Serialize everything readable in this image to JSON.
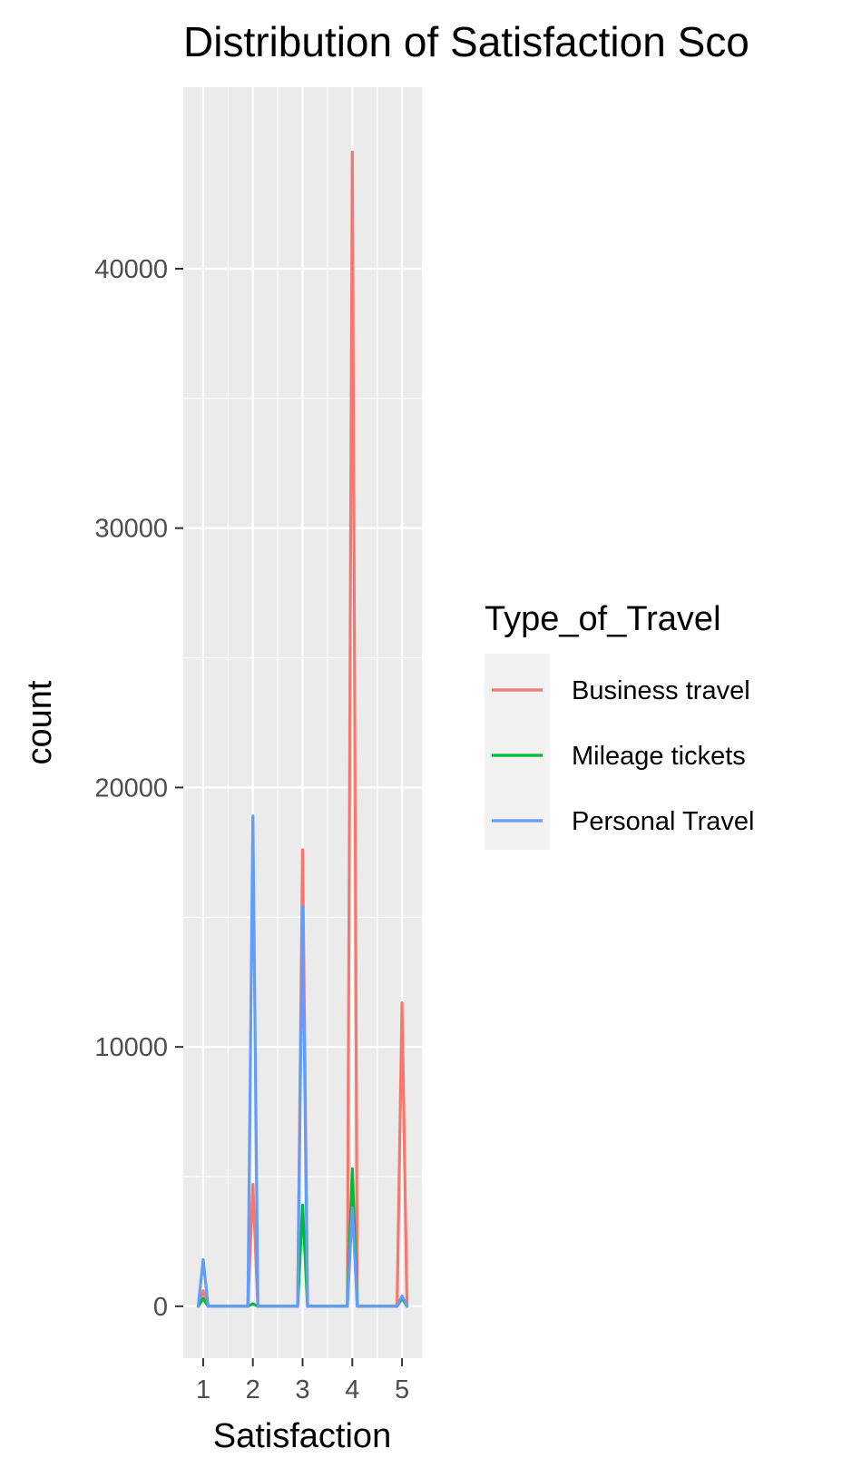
{
  "chart_data": {
    "type": "line",
    "title": "Distribution of Satisfaction Sco",
    "xlabel": "Satisfaction",
    "ylabel": "count",
    "x_ticks": [
      1,
      2,
      3,
      4,
      5
    ],
    "y_ticks": [
      0,
      10000,
      20000,
      30000,
      40000
    ],
    "y_tick_labels": [
      "0",
      "10000",
      "20000",
      "30000",
      "40000"
    ],
    "xlim": [
      0.6,
      5.4
    ],
    "ylim": [
      -2000,
      47000
    ],
    "grid": true,
    "panel_background": "#ebebeb",
    "legend": {
      "title": "Type_of_Travel",
      "position": "right"
    },
    "series": [
      {
        "name": "Business travel",
        "color": "#f8766d",
        "points": [
          [
            0.9,
            0
          ],
          [
            1.0,
            600
          ],
          [
            1.1,
            0
          ],
          [
            1.9,
            0
          ],
          [
            2.0,
            4700
          ],
          [
            2.1,
            0
          ],
          [
            2.9,
            0
          ],
          [
            3.0,
            17600
          ],
          [
            3.1,
            0
          ],
          [
            3.9,
            0
          ],
          [
            4.0,
            44500
          ],
          [
            4.1,
            0
          ],
          [
            4.9,
            0
          ],
          [
            5.0,
            11700
          ],
          [
            5.1,
            0
          ]
        ]
      },
      {
        "name": "Mileage tickets",
        "color": "#00ba38",
        "points": [
          [
            0.9,
            0
          ],
          [
            1.0,
            300
          ],
          [
            1.1,
            0
          ],
          [
            1.9,
            0
          ],
          [
            2.0,
            100
          ],
          [
            2.1,
            0
          ],
          [
            2.9,
            0
          ],
          [
            3.0,
            3900
          ],
          [
            3.1,
            0
          ],
          [
            3.9,
            0
          ],
          [
            4.0,
            5300
          ],
          [
            4.1,
            0
          ],
          [
            4.9,
            0
          ],
          [
            5.0,
            300
          ],
          [
            5.1,
            0
          ]
        ]
      },
      {
        "name": "Personal Travel",
        "color": "#619cff",
        "points": [
          [
            0.9,
            0
          ],
          [
            1.0,
            1800
          ],
          [
            1.1,
            0
          ],
          [
            1.9,
            0
          ],
          [
            2.0,
            18900
          ],
          [
            2.1,
            0
          ],
          [
            2.9,
            0
          ],
          [
            3.0,
            15400
          ],
          [
            3.1,
            0
          ],
          [
            3.9,
            0
          ],
          [
            4.0,
            3800
          ],
          [
            4.1,
            0
          ],
          [
            4.9,
            0
          ],
          [
            5.0,
            400
          ],
          [
            5.1,
            0
          ]
        ]
      }
    ]
  }
}
